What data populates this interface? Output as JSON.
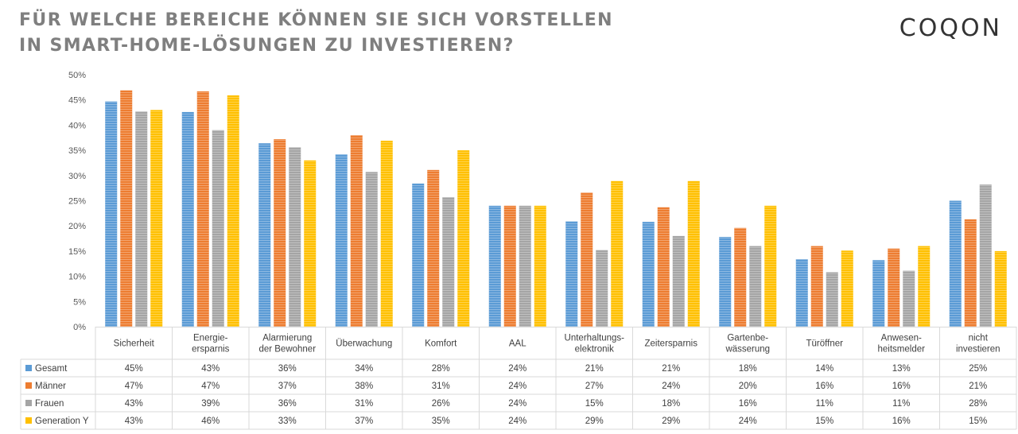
{
  "title": {
    "line1": "FÜR WELCHE BEREICHE KÖNNEN SIE SICH VORSTELLEN",
    "line2": "IN SMART-HOME-LÖSUNGEN ZU INVESTIEREN?"
  },
  "logo": "COQON",
  "chart_data": {
    "type": "bar",
    "title": "FÜR WELCHE BEREICHE KÖNNEN SIE SICH VORSTELLEN IN SMART-HOME-LÖSUNGEN ZU INVESTIEREN?",
    "categories": [
      [
        "Sicherheit"
      ],
      [
        "Energie-",
        "ersparnis"
      ],
      [
        "Alarmierung",
        "der Bewohner"
      ],
      [
        "Überwachung"
      ],
      [
        "Komfort"
      ],
      [
        "AAL"
      ],
      [
        "Unterhaltungs-",
        "elektronik"
      ],
      [
        "Zeitersparnis"
      ],
      [
        "Gartenbe-",
        "wässerung"
      ],
      [
        "Türöffner"
      ],
      [
        "Anwesen-",
        "heitsmelder"
      ],
      [
        "nicht",
        "investieren"
      ]
    ],
    "series": [
      {
        "name": "Gesamt",
        "color": "#5b9bd5",
        "values": [
          45,
          43,
          36,
          34,
          28,
          24,
          21,
          21,
          18,
          14,
          13,
          25
        ],
        "bar_values": [
          44.7,
          42.6,
          36.4,
          34.2,
          28.4,
          24.0,
          20.9,
          20.8,
          17.8,
          13.4,
          13.2,
          25.0
        ]
      },
      {
        "name": "Männer",
        "color": "#ed7d31",
        "values": [
          47,
          47,
          37,
          38,
          31,
          24,
          27,
          24,
          20,
          16,
          16,
          21
        ],
        "bar_values": [
          46.9,
          46.7,
          37.2,
          38.0,
          31.1,
          24.0,
          26.6,
          23.7,
          19.6,
          16.0,
          15.5,
          21.3
        ]
      },
      {
        "name": "Frauen",
        "color": "#a5a5a5",
        "values": [
          43,
          39,
          36,
          31,
          26,
          24,
          15,
          18,
          16,
          11,
          11,
          28
        ],
        "bar_values": [
          42.7,
          39.0,
          35.6,
          30.7,
          25.7,
          24.0,
          15.2,
          18.0,
          16.0,
          10.8,
          11.1,
          28.2
        ]
      },
      {
        "name": "Generation Y",
        "color": "#ffc000",
        "values": [
          43,
          46,
          33,
          37,
          35,
          24,
          29,
          29,
          24,
          15,
          16,
          15
        ],
        "bar_values": [
          43.0,
          45.9,
          33.0,
          36.9,
          35.0,
          24.0,
          28.9,
          28.9,
          24.0,
          15.1,
          16.0,
          15.0
        ]
      }
    ],
    "value_format": "{v}%",
    "ylim": [
      0,
      50
    ],
    "yticks": [
      "0%",
      "5%",
      "10%",
      "15%",
      "20%",
      "25%",
      "30%",
      "35%",
      "40%",
      "45%",
      "50%"
    ],
    "grid": false,
    "legend": "data-table"
  }
}
